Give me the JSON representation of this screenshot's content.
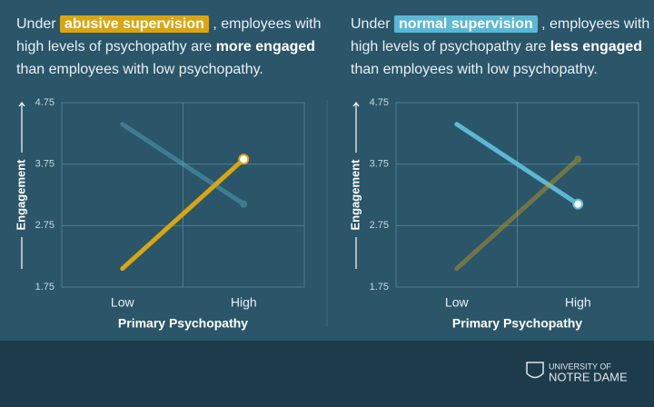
{
  "chart_data": [
    {
      "type": "line",
      "title_parts": [
        {
          "text": "Under",
          "style": "plain"
        },
        {
          "text": "abusive supervision",
          "style": "highlight",
          "color": "#d9a512"
        },
        {
          "text": ", employees with high levels of psychopathy are",
          "style": "plain"
        },
        {
          "text": "more engaged",
          "style": "bold"
        },
        {
          "text": "than employees with low psychopathy.",
          "style": "plain"
        }
      ],
      "categories": [
        "Low",
        "High"
      ],
      "xlabel": "Primary Psychopathy",
      "ylabel": "Engagement",
      "ylim": [
        1.75,
        4.75
      ],
      "yticks": [
        1.75,
        2.75,
        3.75,
        4.75
      ],
      "grid": true,
      "emphasis": 1,
      "series": [
        {
          "color": "#5bb8d4",
          "values": [
            4.4,
            3.1
          ]
        },
        {
          "color": "#d9a512",
          "values": [
            2.05,
            3.83
          ]
        }
      ]
    },
    {
      "type": "line",
      "title_parts": [
        {
          "text": "Under",
          "style": "plain"
        },
        {
          "text": "normal supervision",
          "style": "highlight",
          "color": "#5bb8d4"
        },
        {
          "text": ", employees with high levels of psychopathy are",
          "style": "plain"
        },
        {
          "text": "less engaged",
          "style": "bold"
        },
        {
          "text": "than employees with low psychopathy.",
          "style": "plain"
        }
      ],
      "categories": [
        "Low",
        "High"
      ],
      "xlabel": "Primary Psychopathy",
      "ylabel": "Engagement",
      "ylim": [
        1.75,
        4.75
      ],
      "yticks": [
        1.75,
        2.75,
        3.75,
        4.75
      ],
      "grid": true,
      "emphasis": 0,
      "series": [
        {
          "color": "#5bb8d4",
          "values": [
            4.4,
            3.1
          ]
        },
        {
          "color": "#d9a512",
          "values": [
            2.05,
            3.83
          ]
        }
      ]
    }
  ],
  "footer": {
    "line1": "UNIVERSITY OF",
    "line2": "NOTRE DAME"
  }
}
